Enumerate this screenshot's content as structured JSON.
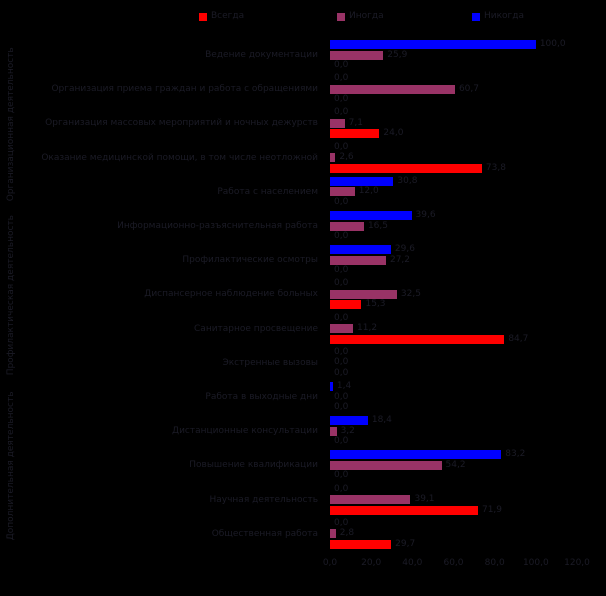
{
  "colors": {
    "background": "#000000",
    "text": "#1b1b26",
    "always": "#ff0000",
    "sometimes": "#993366",
    "never": "#0000ff"
  },
  "legend": {
    "items": [
      {
        "series": "always",
        "label": "Всегда"
      },
      {
        "series": "sometimes",
        "label": "Иногда"
      },
      {
        "series": "never",
        "label": "Никогда"
      }
    ]
  },
  "chart_data": {
    "type": "bar",
    "orientation": "horizontal",
    "title": "",
    "xlabel": "",
    "ylabel": "",
    "xlim": [
      0,
      120
    ],
    "grid": false,
    "legend_position": "top",
    "value_format": "percent-decimal-comma",
    "xticks": [
      {
        "value": 0,
        "label": "0,0"
      },
      {
        "value": 20,
        "label": "20,0"
      },
      {
        "value": 40,
        "label": "40,0"
      },
      {
        "value": 60,
        "label": "60,0"
      },
      {
        "value": 80,
        "label": "80,0"
      },
      {
        "value": 100,
        "label": "100,0"
      },
      {
        "value": 120,
        "label": "120,0"
      }
    ],
    "series_order_top_to_bottom": [
      "never",
      "sometimes",
      "always"
    ],
    "groups": [
      {
        "label": "Организационная деятельность",
        "first_row": 0,
        "last_row": 4
      },
      {
        "label": "Профилактическая деятельность",
        "first_row": 5,
        "last_row": 9
      },
      {
        "label": "Дополнительная деятельность",
        "first_row": 10,
        "last_row": 14
      }
    ],
    "categories": [
      {
        "label": "Ведение документации",
        "never": {
          "v": 100.0,
          "d": "100,0"
        },
        "sometimes": {
          "v": 25.9,
          "d": "25,9"
        },
        "always": {
          "v": 0,
          "d": "0,0"
        }
      },
      {
        "label": "Организация приема граждан и работа с обращениями",
        "never": {
          "v": 0,
          "d": "0,0"
        },
        "sometimes": {
          "v": 60.7,
          "d": "60,7"
        },
        "always": {
          "v": 0,
          "d": "0,0"
        }
      },
      {
        "label": "Организация массовых мероприятий и ночных дежурств",
        "never": {
          "v": 0,
          "d": "0,0"
        },
        "sometimes": {
          "v": 7.1,
          "d": "7,1"
        },
        "always": {
          "v": 24.0,
          "d": "24,0"
        }
      },
      {
        "label": "Оказание медицинской помощи, в том числе неотложной",
        "never": {
          "v": 0,
          "d": "0,0"
        },
        "sometimes": {
          "v": 2.6,
          "d": "2,6"
        },
        "always": {
          "v": 73.8,
          "d": "73,8"
        }
      },
      {
        "label": "Работа с населением",
        "never": {
          "v": 30.8,
          "d": "30,8"
        },
        "sometimes": {
          "v": 12.0,
          "d": "12,0"
        },
        "always": {
          "v": 0,
          "d": "0,0"
        }
      },
      {
        "label": "Информационно-разъяснительная работа",
        "never": {
          "v": 39.6,
          "d": "39,6"
        },
        "sometimes": {
          "v": 16.5,
          "d": "16,5"
        },
        "always": {
          "v": 0,
          "d": "0,0"
        }
      },
      {
        "label": "Профилактические осмотры",
        "never": {
          "v": 29.6,
          "d": "29,6"
        },
        "sometimes": {
          "v": 27.2,
          "d": "27,2"
        },
        "always": {
          "v": 0,
          "d": "0,0"
        }
      },
      {
        "label": "Диспансерное наблюдение больных",
        "never": {
          "v": 0,
          "d": "0,0"
        },
        "sometimes": {
          "v": 32.5,
          "d": "32,5"
        },
        "always": {
          "v": 15.3,
          "d": "15,3"
        }
      },
      {
        "label": "Санитарное просвещение",
        "never": {
          "v": 0,
          "d": "0,0"
        },
        "sometimes": {
          "v": 11.2,
          "d": "11,2"
        },
        "always": {
          "v": 84.7,
          "d": "84,7"
        }
      },
      {
        "label": "Экстренные вызовы",
        "never": {
          "v": 0,
          "d": "0,0"
        },
        "sometimes": {
          "v": 0,
          "d": "0,0"
        },
        "always": {
          "v": 0,
          "d": "0,0"
        }
      },
      {
        "label": "Работа в выходные дни",
        "never": {
          "v": 1.4,
          "d": "1,4"
        },
        "sometimes": {
          "v": 0,
          "d": "0,0"
        },
        "always": {
          "v": 0,
          "d": "0,0"
        }
      },
      {
        "label": "Дистанционные консультации",
        "never": {
          "v": 18.4,
          "d": "18,4"
        },
        "sometimes": {
          "v": 3.2,
          "d": "3,2"
        },
        "always": {
          "v": 0,
          "d": "0,0"
        }
      },
      {
        "label": "Повышение квалификации",
        "never": {
          "v": 83.2,
          "d": "83,2"
        },
        "sometimes": {
          "v": 54.2,
          "d": "54,2"
        },
        "always": {
          "v": 0,
          "d": "0,0"
        }
      },
      {
        "label": "Научная деятельность",
        "never": {
          "v": 0,
          "d": "0,0"
        },
        "sometimes": {
          "v": 39.1,
          "d": "39,1"
        },
        "always": {
          "v": 71.9,
          "d": "71,9"
        }
      },
      {
        "label": "Общественная работа",
        "never": {
          "v": 0,
          "d": "0,0"
        },
        "sometimes": {
          "v": 2.8,
          "d": "2,8"
        },
        "always": {
          "v": 29.7,
          "d": "29,7"
        }
      }
    ]
  }
}
